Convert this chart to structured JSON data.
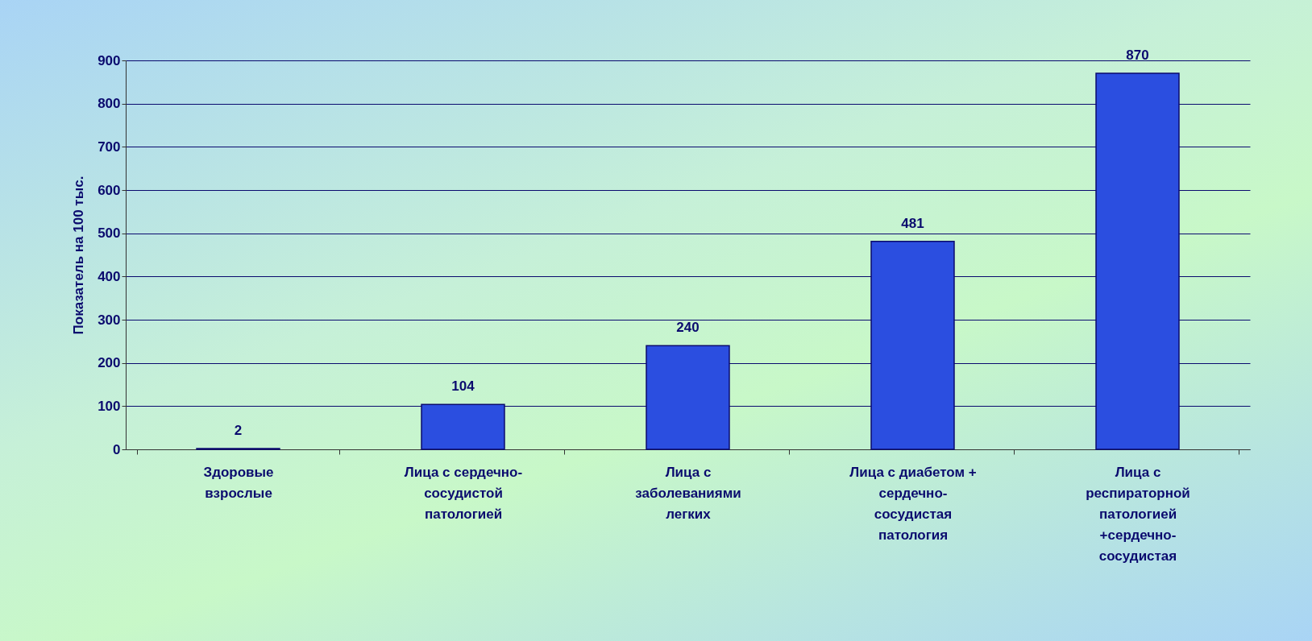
{
  "chart_data": {
    "type": "bar",
    "ylabel": "Показатель на 100 тыс.",
    "categories": [
      "Здоровые взрослые",
      "Лица с сердечно-сосудистой патологией",
      "Лица с заболеваниями легких",
      "Лица с диабетом + сердечно-сосудистая патология",
      "Лица с респираторной патологией +сердечно-сосудистая"
    ],
    "values": [
      2,
      104,
      240,
      481,
      870
    ],
    "color": "#2b4ee0",
    "ylim": [
      0,
      900
    ],
    "yticks": [
      0,
      100,
      200,
      300,
      400,
      500,
      600,
      700,
      800,
      900
    ],
    "grid": "y",
    "data_labels": true
  }
}
